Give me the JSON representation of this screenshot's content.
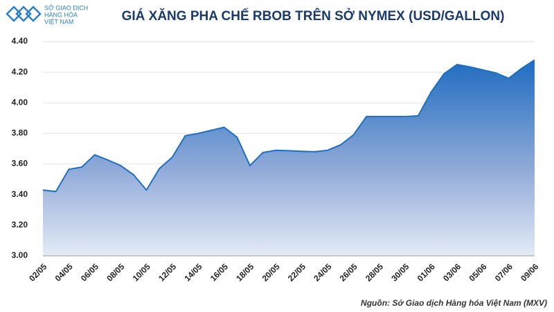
{
  "logo": [
    "SỞ GIAO DỊCH",
    "HÀNG HÓA",
    "VIỆT NAM"
  ],
  "chart_data": {
    "type": "area",
    "title": "GIÁ XĂNG PHA CHẾ RBOB TRÊN SỞ NYMEX (USD/GALLON)",
    "source": "Nguồn: Sở Giao dịch Hàng hóa Việt Nam (MXV)",
    "categories": [
      "02/05",
      null,
      "04/05",
      null,
      "06/05",
      null,
      "08/05",
      null,
      "10/05",
      null,
      "12/05",
      null,
      "14/05",
      null,
      "16/05",
      null,
      "18/05",
      null,
      "20/05",
      null,
      "22/05",
      null,
      "24/05",
      null,
      "26/05",
      null,
      "28/05",
      null,
      "30/05",
      null,
      "01/06",
      null,
      "03/06",
      null,
      "05/06",
      null,
      "07/06",
      null,
      "09/06"
    ],
    "series": [
      {
        "name": "RBOB",
        "color": "#1d6fc3",
        "values": [
          3.43,
          3.42,
          3.565,
          3.58,
          3.66,
          3.627,
          3.59,
          3.53,
          3.43,
          3.57,
          3.645,
          3.785,
          3.8,
          3.82,
          3.84,
          3.775,
          3.59,
          3.675,
          3.69,
          3.687,
          3.683,
          3.68,
          3.69,
          3.725,
          3.79,
          3.91,
          3.91,
          3.91,
          3.91,
          3.915,
          4.07,
          4.19,
          4.25,
          4.235,
          4.215,
          4.195,
          4.16,
          4.225,
          4.28
        ]
      }
    ],
    "ylim": [
      3,
      4.4
    ],
    "yticks": [
      {
        "value": 3,
        "label": "3.00"
      },
      {
        "value": 3.2,
        "label": "3.20"
      },
      {
        "value": 3.4,
        "label": "3.40"
      },
      {
        "value": 3.6,
        "label": "3.60"
      },
      {
        "value": 3.8,
        "label": "3.80"
      },
      {
        "value": 4,
        "label": "4.00"
      },
      {
        "value": 4.2,
        "label": "4.20"
      },
      {
        "value": 4.4,
        "label": "4.40"
      }
    ],
    "grid": true
  }
}
